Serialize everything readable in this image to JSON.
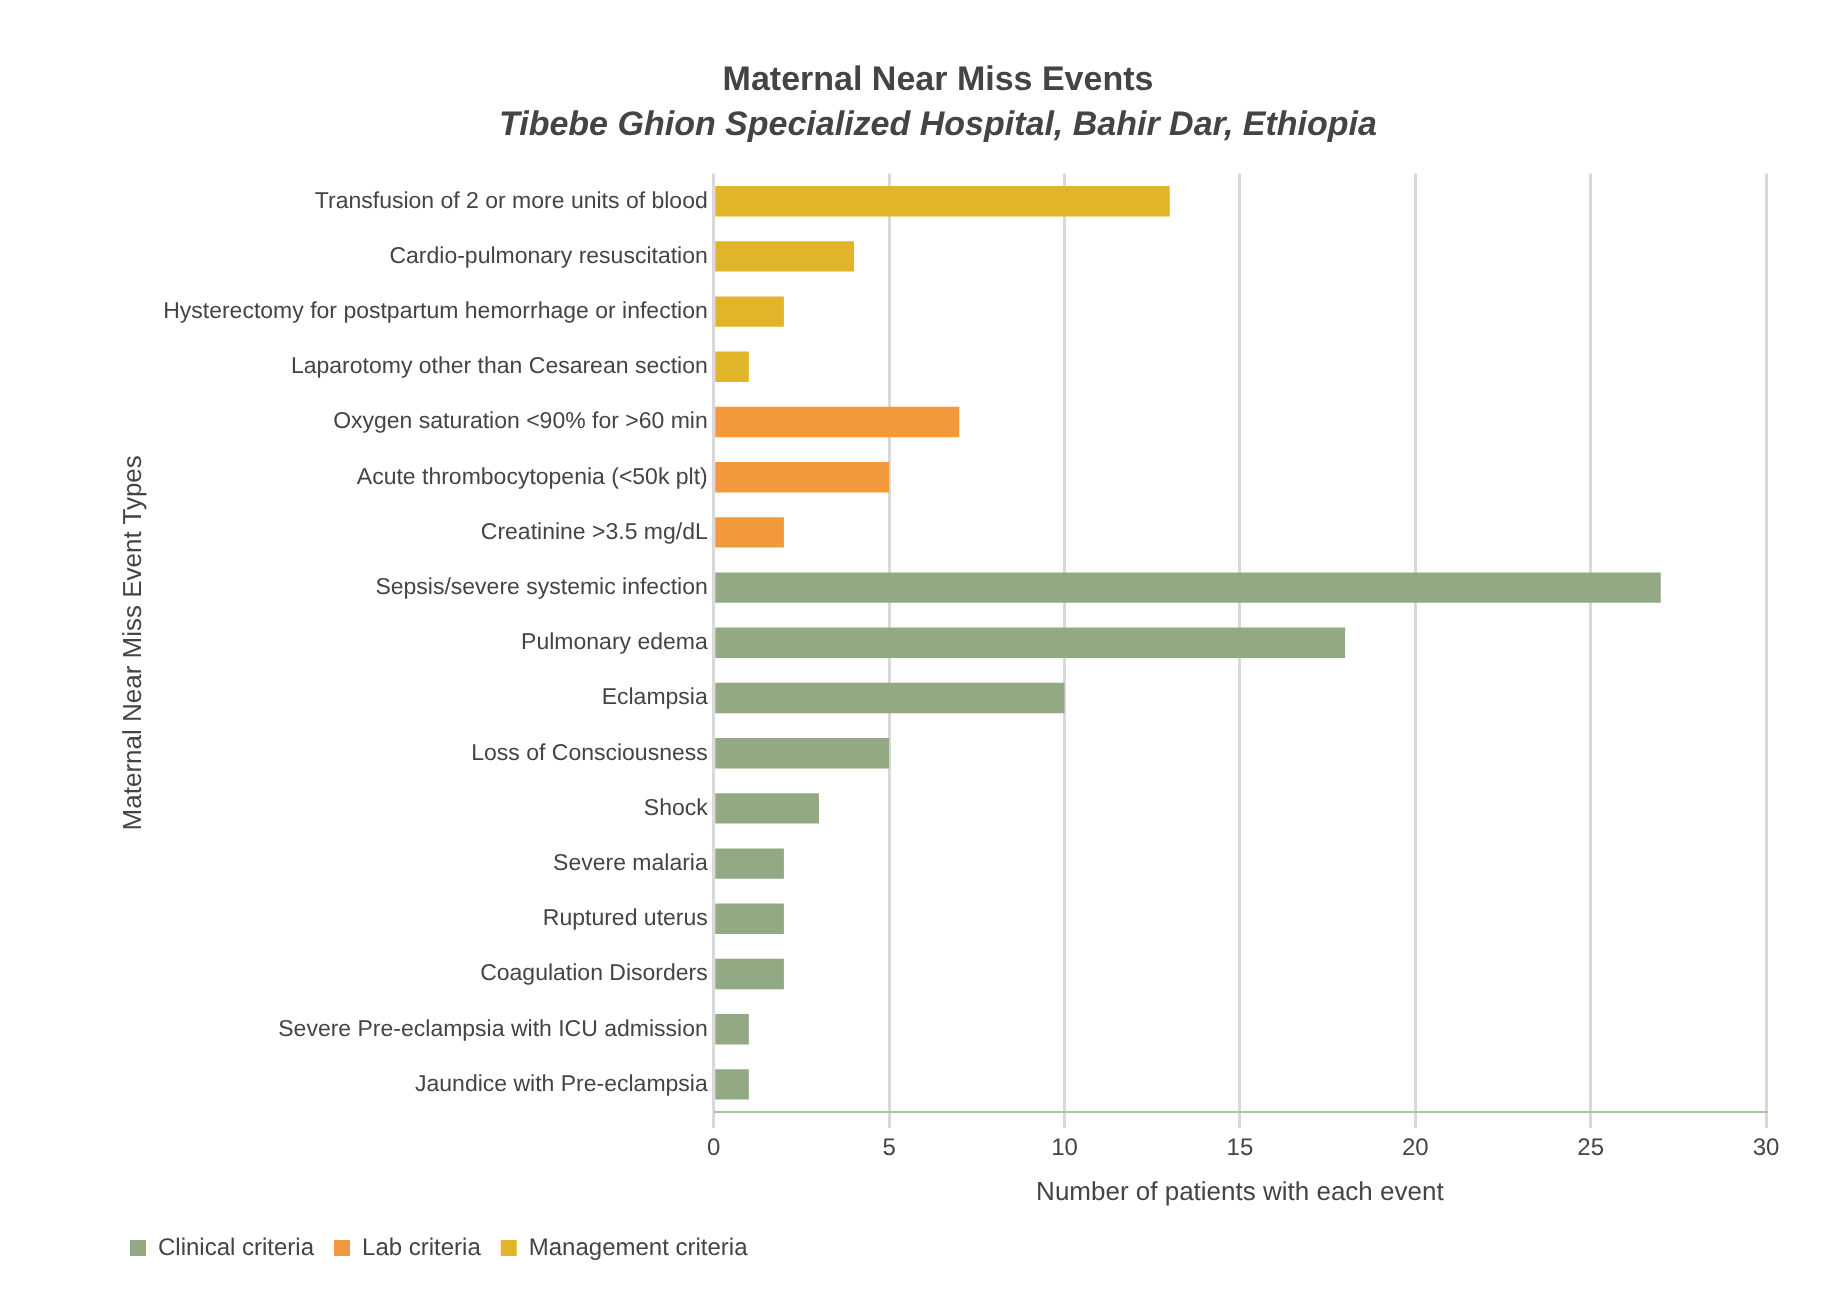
{
  "chart_data": {
    "type": "bar",
    "orientation": "horizontal",
    "stacked": true,
    "title": "Maternal Near Miss Events",
    "subtitle": "Tibebe Ghion Specialized Hospital, Bahir Dar, Ethiopia",
    "xlabel": "Number of patients with each event",
    "ylabel": "Maternal Near Miss Event Types",
    "categories": [
      "Transfusion of 2 or more units of blood",
      "Cardio-pulmonary resuscitation",
      "Hysterectomy for postpartum hemorrhage or infection",
      "Laparotomy other than Cesarean section",
      "Oxygen saturation <90% for >60 min",
      "Acute thrombocytopenia (<50k plt)",
      "Creatinine >3.5 mg/dL",
      "Sepsis/severe systemic infection",
      "Pulmonary edema",
      "Eclampsia",
      "Loss of Consciousness",
      "Shock",
      "Severe malaria",
      "Ruptured uterus",
      "Coagulation Disorders",
      "Severe Pre-eclampsia with ICU admission",
      "Jaundice with Pre-eclampsia"
    ],
    "series": [
      {
        "name": "Clinical criteria",
        "color": "#93a984",
        "values": [
          null,
          null,
          null,
          null,
          null,
          null,
          null,
          27,
          18,
          10,
          5,
          3,
          2,
          2,
          2,
          1,
          1
        ]
      },
      {
        "name": "Lab criteria",
        "color": "#f29a3b",
        "values": [
          null,
          null,
          null,
          null,
          7,
          5,
          2,
          null,
          null,
          null,
          null,
          null,
          null,
          null,
          null,
          null,
          null
        ]
      },
      {
        "name": "Management criteria",
        "color": "#e0b52a",
        "values": [
          13,
          4,
          2,
          1,
          null,
          null,
          null,
          null,
          null,
          null,
          null,
          null,
          null,
          null,
          null,
          null,
          null
        ]
      }
    ],
    "xlim": [
      0,
      30
    ],
    "xticks": [
      0,
      5,
      10,
      15,
      20,
      25,
      30
    ],
    "grid": "x",
    "legend": "bottom left"
  }
}
